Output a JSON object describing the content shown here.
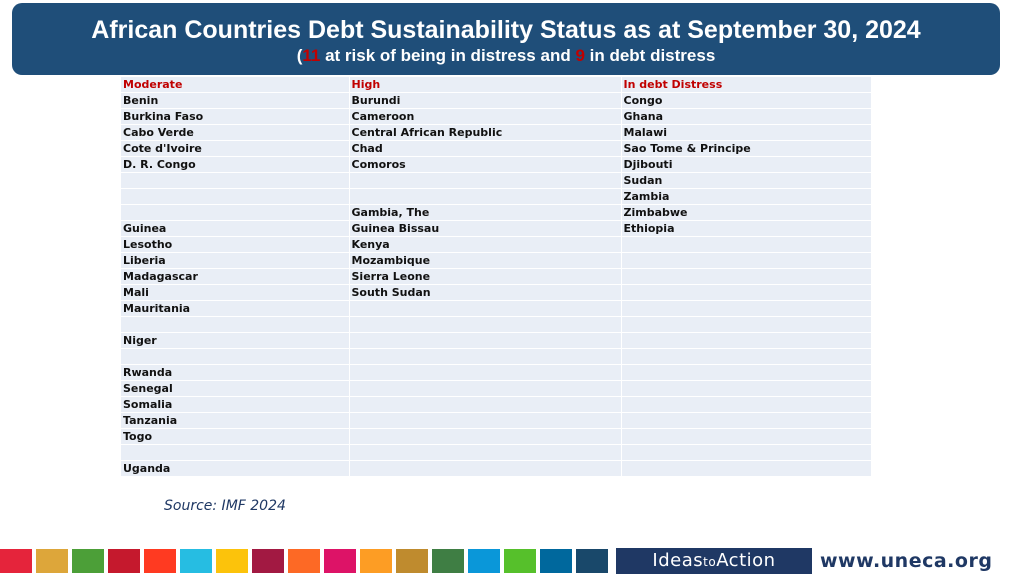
{
  "header": {
    "title": "African Countries Debt Sustainability Status as at September 30, 2024",
    "subtitle_open": "(",
    "at_risk_count": "11",
    "subtitle_mid": " at risk of being in distress and ",
    "distress_count": "9",
    "subtitle_end": " in debt distress"
  },
  "table": {
    "headers": [
      "Moderate",
      "High",
      "In debt Distress"
    ],
    "rows": [
      [
        "Benin",
        "Burundi",
        "Congo"
      ],
      [
        "Burkina Faso",
        "Cameroon",
        "Ghana"
      ],
      [
        "Cabo Verde",
        "Central African Republic",
        "Malawi"
      ],
      [
        "Cote d'Ivoire",
        "Chad",
        "Sao Tome & Principe"
      ],
      [
        "D. R. Congo",
        "Comoros",
        "Djibouti"
      ],
      [
        "",
        "",
        "Sudan"
      ],
      [
        "",
        "",
        "Zambia"
      ],
      [
        "",
        "Gambia, The",
        "Zimbabwe"
      ],
      [
        "Guinea",
        "Guinea Bissau",
        "Ethiopia"
      ],
      [
        "Lesotho",
        "Kenya",
        ""
      ],
      [
        "Liberia",
        "Mozambique",
        ""
      ],
      [
        "Madagascar",
        "Sierra Leone",
        ""
      ],
      [
        "Mali",
        "South Sudan",
        ""
      ],
      [
        "Mauritania",
        "",
        ""
      ],
      [
        "",
        "",
        ""
      ],
      [
        "Niger",
        "",
        ""
      ],
      [
        "",
        "",
        ""
      ],
      [
        "Rwanda",
        "",
        ""
      ],
      [
        "Senegal",
        "",
        ""
      ],
      [
        "Somalia",
        "",
        ""
      ],
      [
        "Tanzania",
        "",
        ""
      ],
      [
        "Togo",
        "",
        ""
      ],
      [
        "",
        "",
        ""
      ],
      [
        "Uganda",
        "",
        ""
      ]
    ]
  },
  "source": "Source: IMF 2024",
  "footer": {
    "squares": [
      "#e5243b",
      "#dda63a",
      "#4c9f38",
      "#c5192d",
      "#ff3a21",
      "#26bde2",
      "#fcc30b",
      "#a21942",
      "#fd6925",
      "#dd1367",
      "#fd9d24",
      "#bf8b2e",
      "#3f7e44",
      "#0a97d9",
      "#56c02b",
      "#00689d",
      "#19486a"
    ],
    "brand_ideas": "Ideas",
    "brand_to": "to",
    "brand_action": "Action",
    "url": "www.uneca.org"
  }
}
